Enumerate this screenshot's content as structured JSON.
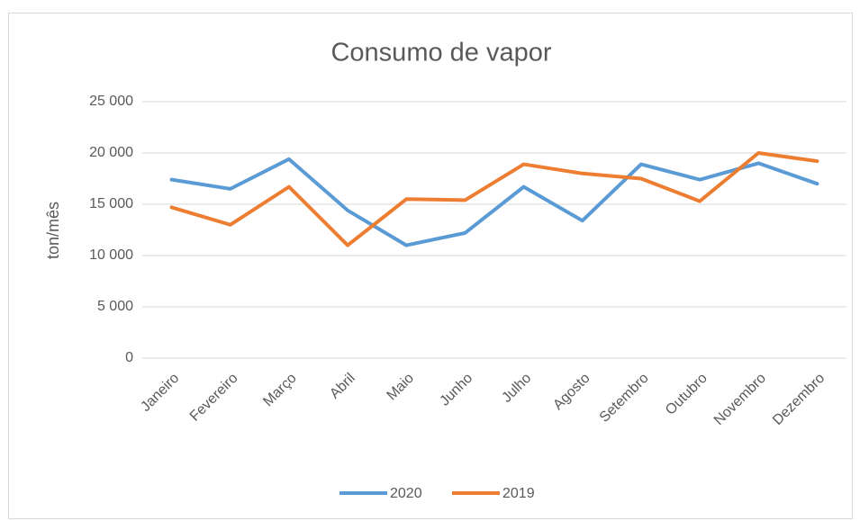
{
  "chart_data": {
    "type": "line",
    "title": "Consumo de vapor",
    "ylabel": "ton/mês",
    "categories": [
      "Janeiro",
      "Fevereiro",
      "Março",
      "Abril",
      "Maio",
      "Junho",
      "Julho",
      "Agosto",
      "Setembro",
      "Outubro",
      "Novembro",
      "Dezembro"
    ],
    "series": [
      {
        "name": "2020",
        "color": "#5b9bd5",
        "values": [
          17400,
          16500,
          19400,
          14400,
          11000,
          12200,
          16700,
          13400,
          18900,
          17400,
          19000,
          17000
        ]
      },
      {
        "name": "2019",
        "color": "#ed7d31",
        "values": [
          14700,
          13000,
          16700,
          11000,
          15500,
          15400,
          18900,
          18000,
          17500,
          15300,
          20000,
          19200
        ]
      }
    ],
    "ylim": [
      0,
      25000
    ],
    "yticks": [
      {
        "value": 0,
        "label": "0"
      },
      {
        "value": 5000,
        "label": "5 000"
      },
      {
        "value": 10000,
        "label": "10 000"
      },
      {
        "value": 15000,
        "label": "15 000"
      },
      {
        "value": 20000,
        "label": "20 000"
      },
      {
        "value": 25000,
        "label": "25 000"
      }
    ],
    "grid": true,
    "legend": "bottom"
  }
}
